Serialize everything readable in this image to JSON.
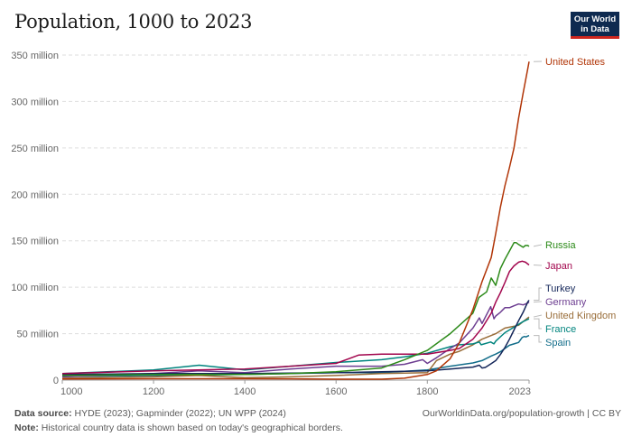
{
  "header": {
    "title": "Population, 1000 to 2023",
    "logo_line1": "Our World",
    "logo_line2": "in Data"
  },
  "footer": {
    "source_label": "Data source:",
    "source_text": "HYDE (2023); Gapminder (2022); UN WPP (2024)",
    "note_label": "Note:",
    "note_text": "Historical country data is shown based on today's geographical borders.",
    "credit": "OurWorldinData.org/population-growth | CC BY"
  },
  "chart_data": {
    "type": "line",
    "title": "Population, 1000 to 2023",
    "xlabel": "",
    "ylabel": "",
    "xlim": [
      1000,
      2023
    ],
    "ylim": [
      0,
      350000000
    ],
    "x_ticks": [
      1000,
      1200,
      1400,
      1600,
      1800,
      2023
    ],
    "y_ticks": [
      {
        "value": 0,
        "label": "0"
      },
      {
        "value": 50000000,
        "label": "50 million"
      },
      {
        "value": 100000000,
        "label": "100 million"
      },
      {
        "value": 150000000,
        "label": "150 million"
      },
      {
        "value": 200000000,
        "label": "200 million"
      },
      {
        "value": 250000000,
        "label": "250 million"
      },
      {
        "value": 300000000,
        "label": "300 million"
      },
      {
        "value": 350000000,
        "label": "350 million"
      }
    ],
    "grid": "horizontal-dashed",
    "legend": "right (inline labels)",
    "series": [
      {
        "name": "United States",
        "color": "#b13507",
        "points": [
          [
            1000,
            1.3
          ],
          [
            1200,
            1.5
          ],
          [
            1400,
            1.5
          ],
          [
            1500,
            1.4
          ],
          [
            1600,
            1.0
          ],
          [
            1700,
            1.0
          ],
          [
            1750,
            2.0
          ],
          [
            1800,
            6.0
          ],
          [
            1820,
            10
          ],
          [
            1850,
            23
          ],
          [
            1870,
            40
          ],
          [
            1900,
            76
          ],
          [
            1920,
            106
          ],
          [
            1940,
            132
          ],
          [
            1950,
            158
          ],
          [
            1960,
            186
          ],
          [
            1970,
            209
          ],
          [
            1980,
            229
          ],
          [
            1990,
            250
          ],
          [
            2000,
            282
          ],
          [
            2010,
            309
          ],
          [
            2020,
            335
          ],
          [
            2023,
            343
          ]
        ]
      },
      {
        "name": "Russia",
        "color": "#2c8a19",
        "points": [
          [
            1000,
            5
          ],
          [
            1200,
            6
          ],
          [
            1400,
            6
          ],
          [
            1500,
            7
          ],
          [
            1600,
            9
          ],
          [
            1700,
            13
          ],
          [
            1750,
            22
          ],
          [
            1800,
            32
          ],
          [
            1850,
            50
          ],
          [
            1900,
            72
          ],
          [
            1913,
            89
          ],
          [
            1930,
            95
          ],
          [
            1940,
            110
          ],
          [
            1950,
            102
          ],
          [
            1960,
            120
          ],
          [
            1970,
            130
          ],
          [
            1980,
            139
          ],
          [
            1990,
            148
          ],
          [
            1995,
            148
          ],
          [
            2000,
            146
          ],
          [
            2010,
            143
          ],
          [
            2015,
            145
          ],
          [
            2020,
            145
          ],
          [
            2023,
            144
          ]
        ]
      },
      {
        "name": "Japan",
        "color": "#a2064d",
        "points": [
          [
            1000,
            7
          ],
          [
            1200,
            10
          ],
          [
            1400,
            12
          ],
          [
            1500,
            15
          ],
          [
            1600,
            18
          ],
          [
            1650,
            27
          ],
          [
            1700,
            28
          ],
          [
            1800,
            28
          ],
          [
            1850,
            32
          ],
          [
            1870,
            34
          ],
          [
            1900,
            44
          ],
          [
            1920,
            56
          ],
          [
            1940,
            72
          ],
          [
            1950,
            84
          ],
          [
            1960,
            94
          ],
          [
            1970,
            105
          ],
          [
            1980,
            117
          ],
          [
            1990,
            123
          ],
          [
            2000,
            127
          ],
          [
            2008,
            128
          ],
          [
            2015,
            127
          ],
          [
            2023,
            124
          ]
        ]
      },
      {
        "name": "Turkey",
        "color": "#15275a",
        "points": [
          [
            1000,
            6
          ],
          [
            1200,
            7
          ],
          [
            1400,
            7
          ],
          [
            1600,
            8
          ],
          [
            1700,
            9
          ],
          [
            1800,
            10
          ],
          [
            1850,
            12
          ],
          [
            1900,
            14
          ],
          [
            1914,
            16
          ],
          [
            1920,
            13
          ],
          [
            1927,
            13.6
          ],
          [
            1940,
            17.8
          ],
          [
            1950,
            21
          ],
          [
            1960,
            27.5
          ],
          [
            1970,
            35
          ],
          [
            1980,
            44
          ],
          [
            1990,
            54
          ],
          [
            2000,
            64
          ],
          [
            2010,
            73
          ],
          [
            2020,
            84
          ],
          [
            2023,
            86
          ]
        ]
      },
      {
        "name": "Germany",
        "color": "#6d3e91",
        "points": [
          [
            1000,
            3.5
          ],
          [
            1200,
            7
          ],
          [
            1300,
            10
          ],
          [
            1400,
            8
          ],
          [
            1500,
            12
          ],
          [
            1600,
            15
          ],
          [
            1700,
            15
          ],
          [
            1750,
            17
          ],
          [
            1790,
            22
          ],
          [
            1800,
            18
          ],
          [
            1820,
            24
          ],
          [
            1850,
            34
          ],
          [
            1870,
            40
          ],
          [
            1900,
            56
          ],
          [
            1914,
            67
          ],
          [
            1920,
            61
          ],
          [
            1939,
            79
          ],
          [
            1946,
            66
          ],
          [
            1950,
            69
          ],
          [
            1960,
            73
          ],
          [
            1970,
            78
          ],
          [
            1980,
            78
          ],
          [
            1990,
            80
          ],
          [
            2000,
            82
          ],
          [
            2010,
            81
          ],
          [
            2015,
            82
          ],
          [
            2020,
            83
          ],
          [
            2023,
            84
          ]
        ]
      },
      {
        "name": "United Kingdom",
        "color": "#996d39",
        "points": [
          [
            1000,
            2
          ],
          [
            1200,
            3.5
          ],
          [
            1300,
            5
          ],
          [
            1400,
            2.5
          ],
          [
            1500,
            3.5
          ],
          [
            1600,
            5
          ],
          [
            1700,
            7
          ],
          [
            1800,
            8
          ],
          [
            1820,
            21
          ],
          [
            1850,
            28
          ],
          [
            1870,
            31
          ],
          [
            1900,
            38
          ],
          [
            1920,
            44
          ],
          [
            1950,
            50
          ],
          [
            1970,
            56
          ],
          [
            2000,
            59
          ],
          [
            2010,
            63
          ],
          [
            2023,
            68
          ]
        ]
      },
      {
        "name": "France",
        "color": "#00847e",
        "points": [
          [
            1000,
            7
          ],
          [
            1200,
            11
          ],
          [
            1300,
            16
          ],
          [
            1400,
            11
          ],
          [
            1500,
            15
          ],
          [
            1600,
            19
          ],
          [
            1700,
            22
          ],
          [
            1750,
            25
          ],
          [
            1800,
            29
          ],
          [
            1850,
            36
          ],
          [
            1870,
            38
          ],
          [
            1900,
            39
          ],
          [
            1914,
            41
          ],
          [
            1918,
            38
          ],
          [
            1939,
            41
          ],
          [
            1946,
            39
          ],
          [
            1950,
            42
          ],
          [
            1970,
            51
          ],
          [
            1990,
            57
          ],
          [
            2010,
            63
          ],
          [
            2023,
            66
          ]
        ]
      },
      {
        "name": "Spain",
        "color": "#126d8a",
        "points": [
          [
            1000,
            4
          ],
          [
            1200,
            5
          ],
          [
            1400,
            6
          ],
          [
            1600,
            8
          ],
          [
            1700,
            8
          ],
          [
            1800,
            11
          ],
          [
            1850,
            15
          ],
          [
            1900,
            18.5
          ],
          [
            1920,
            21
          ],
          [
            1940,
            26
          ],
          [
            1950,
            28
          ],
          [
            1960,
            30.5
          ],
          [
            1970,
            34
          ],
          [
            1980,
            37.5
          ],
          [
            1990,
            39
          ],
          [
            2000,
            40.5
          ],
          [
            2008,
            46
          ],
          [
            2013,
            47
          ],
          [
            2016,
            46.5
          ],
          [
            2023,
            48
          ]
        ]
      }
    ]
  }
}
